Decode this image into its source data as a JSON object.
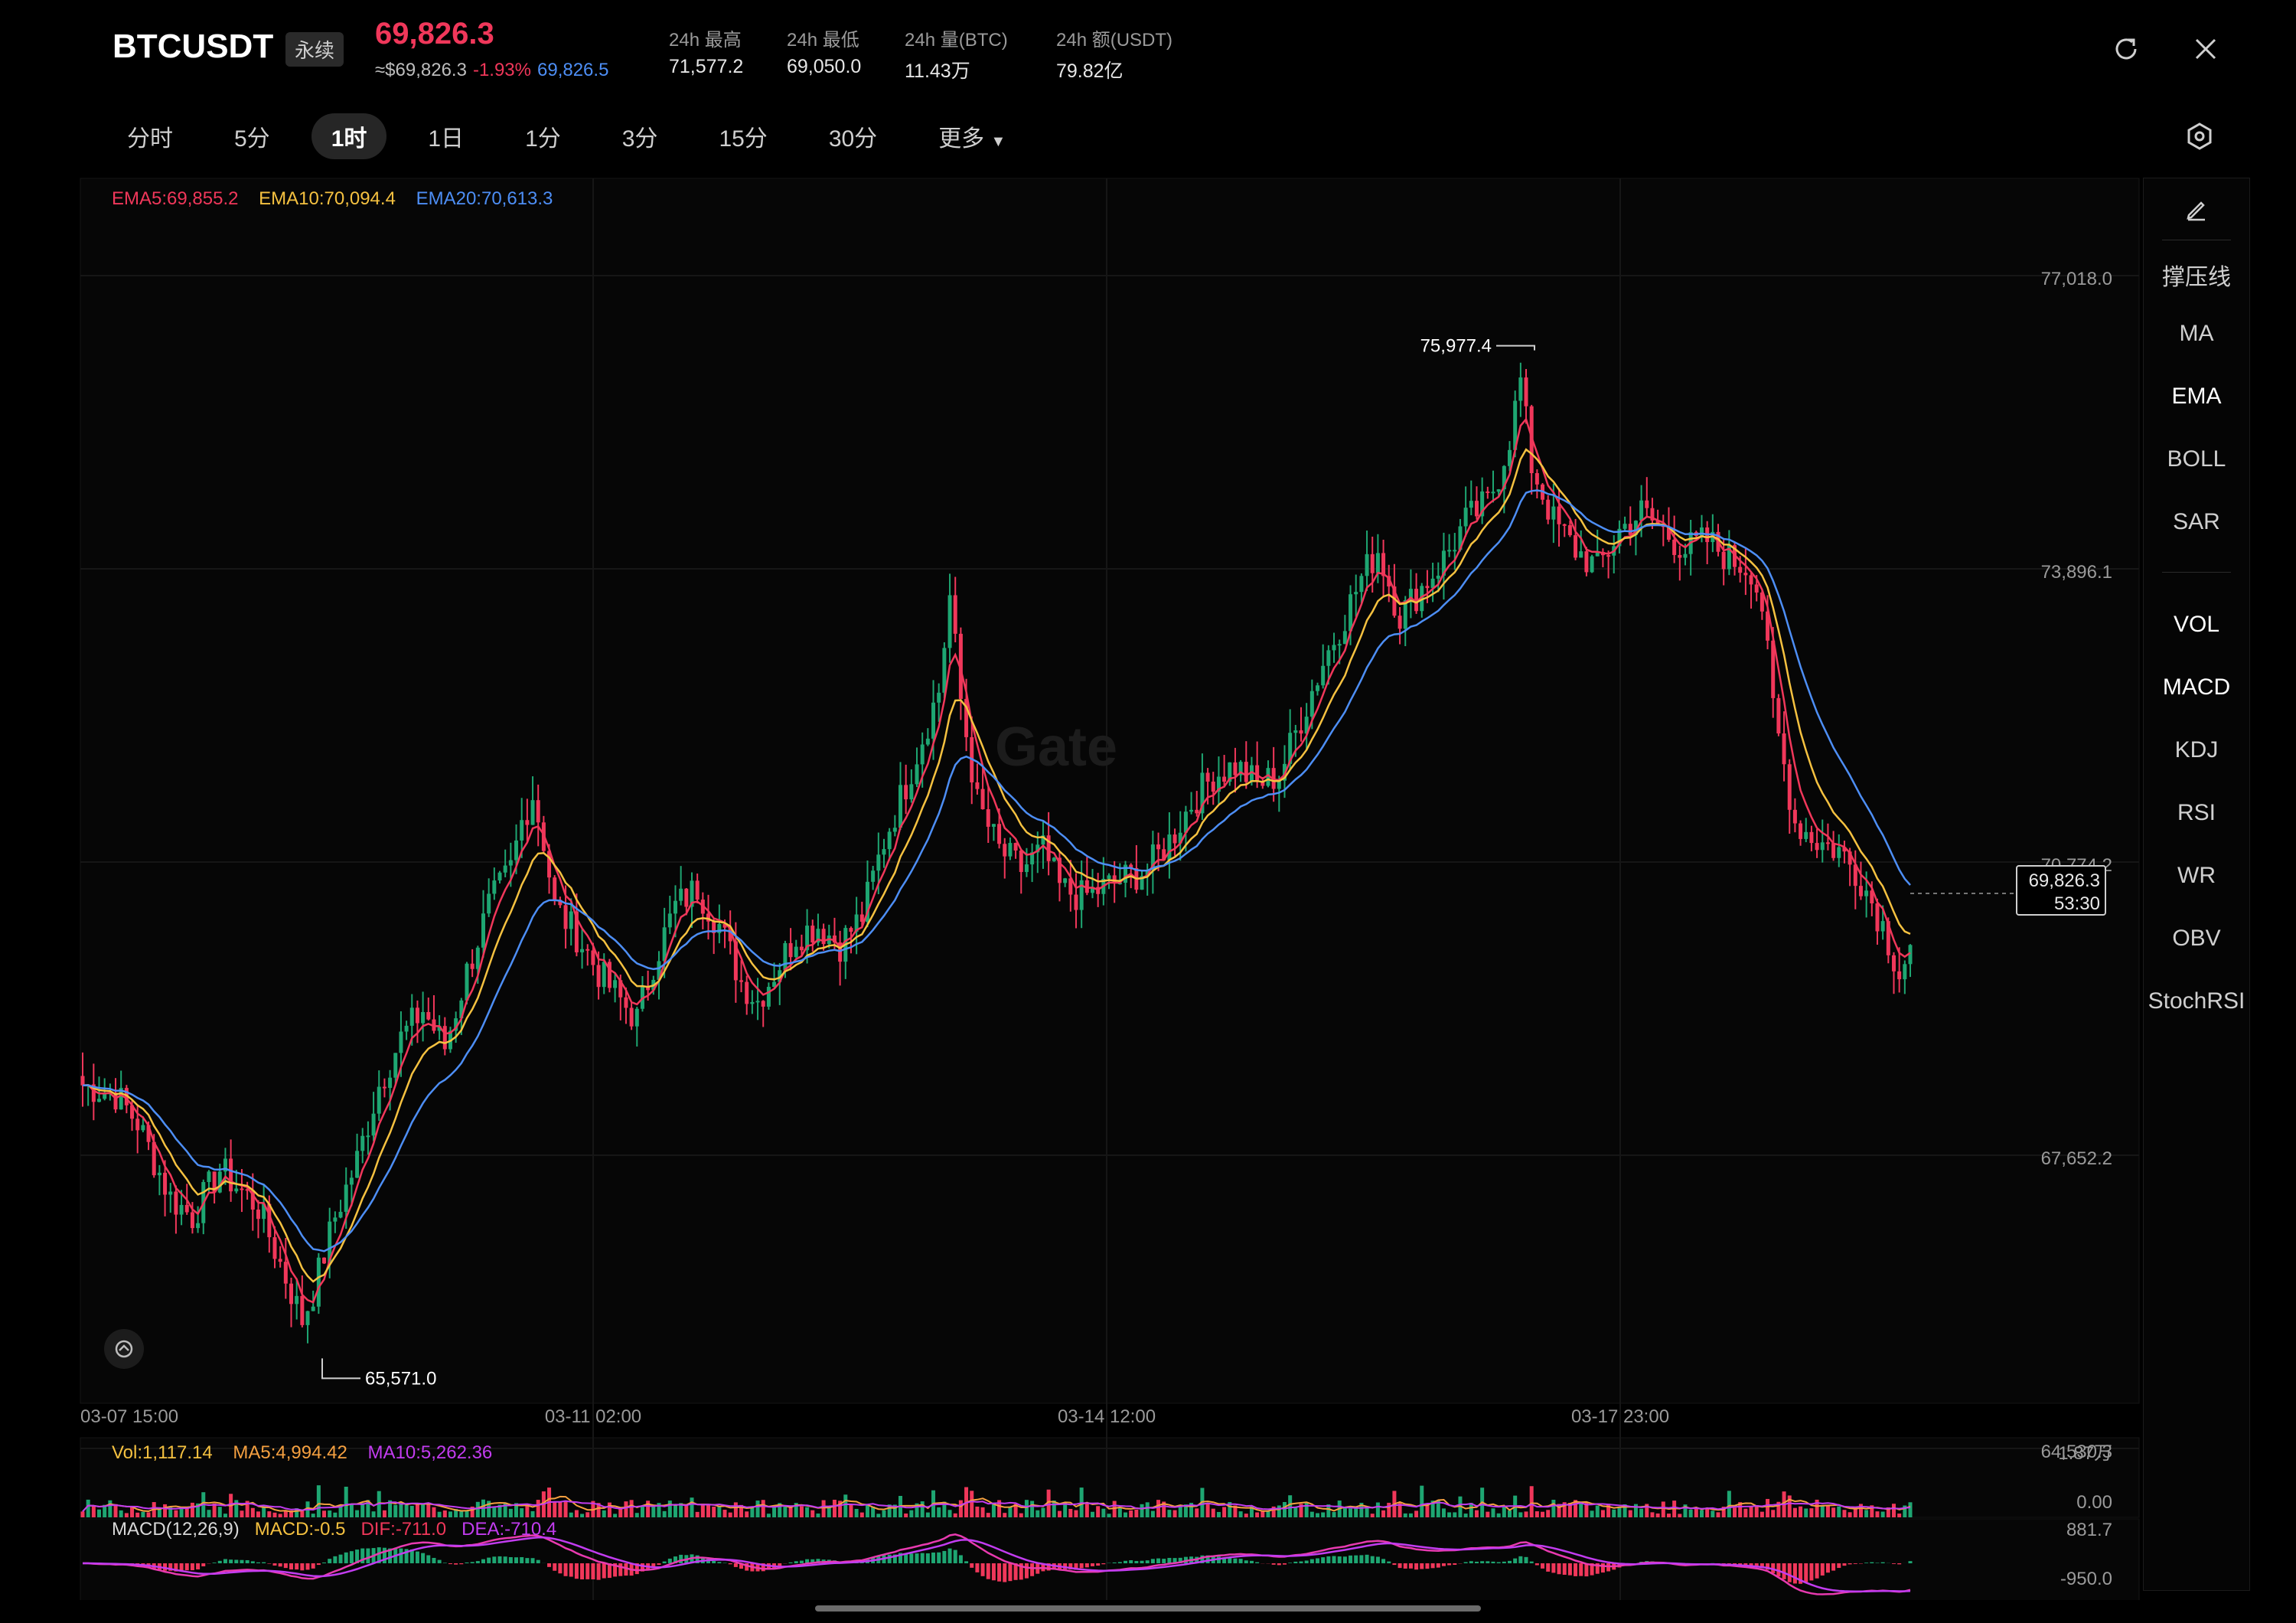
{
  "header": {
    "symbol": "BTCUSDT",
    "badge": "永续",
    "last_price": "69,826.3",
    "usd_price": "≈$69,826.3",
    "change_pct": "-1.93%",
    "mark_price": "69,826.5",
    "stats": [
      {
        "label": "24h  最高",
        "value": "71,577.2"
      },
      {
        "label": "24h  最低",
        "value": "69,050.0"
      },
      {
        "label": "24h  量(BTC)",
        "value": "11.43万"
      },
      {
        "label": "24h  额(USDT)",
        "value": "79.82亿"
      }
    ]
  },
  "intervals": [
    "分时",
    "5分",
    "1时",
    "1日",
    "1分",
    "3分",
    "15分",
    "30分",
    "更多"
  ],
  "active_interval": "1时",
  "indicators": {
    "overlay": [
      "撑压线",
      "MA",
      "EMA",
      "BOLL",
      "SAR"
    ],
    "sub": [
      "VOL",
      "MACD",
      "KDJ",
      "RSI",
      "WR",
      "OBV",
      "StochRSI"
    ]
  },
  "colors": {
    "up": "#1ea672",
    "down": "#f0375a",
    "ema5": "#f0375a",
    "ema10": "#f5c140",
    "ema20": "#4d8ef5",
    "ma10": "#c23cf0",
    "macd_line": "#e83ab0"
  },
  "watermark": "Gate",
  "chart_data": {
    "type": "candlestick",
    "interval": "1h",
    "ema_legend": [
      {
        "name": "EMA5",
        "value": "69,855.2"
      },
      {
        "name": "EMA10",
        "value": "70,094.4"
      },
      {
        "name": "EMA20",
        "value": "70,613.3"
      }
    ],
    "y_ticks": [
      "77,018.0",
      "73,896.1",
      "70,774.2",
      "67,652.2",
      "64,530.3"
    ],
    "ylim": [
      64530.3,
      77018.0
    ],
    "x_ticks": [
      "03-07 15:00",
      "03-11 02:00",
      "03-14 12:00",
      "03-17 23:00"
    ],
    "high_label": "75,977.4",
    "low_label": "65,571.0",
    "current_price": "69,826.3",
    "countdown": "53:30",
    "close_path": [
      [
        0,
        68400
      ],
      [
        6,
        68300
      ],
      [
        10,
        68000
      ],
      [
        16,
        67200
      ],
      [
        20,
        67000
      ],
      [
        25,
        67500
      ],
      [
        32,
        67100
      ],
      [
        36,
        66500
      ],
      [
        40,
        65900
      ],
      [
        42,
        66200
      ],
      [
        46,
        67000
      ],
      [
        50,
        67600
      ],
      [
        54,
        68400
      ],
      [
        58,
        68900
      ],
      [
        62,
        69200
      ],
      [
        66,
        68800
      ],
      [
        70,
        69600
      ],
      [
        74,
        70300
      ],
      [
        78,
        70700
      ],
      [
        80,
        71200
      ],
      [
        82,
        71500
      ],
      [
        84,
        71000
      ],
      [
        86,
        70300
      ],
      [
        90,
        70000
      ],
      [
        94,
        69600
      ],
      [
        98,
        69300
      ],
      [
        101,
        69100
      ],
      [
        104,
        69700
      ],
      [
        108,
        70300
      ],
      [
        112,
        70500
      ],
      [
        116,
        70100
      ],
      [
        120,
        69500
      ],
      [
        123,
        69300
      ],
      [
        127,
        69700
      ],
      [
        130,
        70000
      ],
      [
        134,
        70100
      ],
      [
        138,
        69900
      ],
      [
        142,
        70200
      ],
      [
        146,
        71000
      ],
      [
        150,
        71600
      ],
      [
        153,
        72100
      ],
      [
        156,
        72600
      ],
      [
        158,
        73600
      ],
      [
        160,
        72500
      ],
      [
        163,
        71400
      ],
      [
        167,
        70900
      ],
      [
        171,
        70700
      ],
      [
        175,
        70900
      ],
      [
        178,
        70500
      ],
      [
        182,
        70400
      ],
      [
        186,
        70500
      ],
      [
        190,
        70600
      ],
      [
        194,
        70700
      ],
      [
        198,
        71000
      ],
      [
        202,
        71400
      ],
      [
        206,
        71700
      ],
      [
        210,
        71800
      ],
      [
        214,
        71600
      ],
      [
        218,
        71700
      ],
      [
        222,
        72300
      ],
      [
        226,
        72900
      ],
      [
        230,
        73400
      ],
      [
        233,
        73800
      ],
      [
        236,
        74100
      ],
      [
        240,
        73400
      ],
      [
        244,
        73700
      ],
      [
        248,
        74000
      ],
      [
        252,
        74400
      ],
      [
        256,
        74600
      ],
      [
        258,
        74900
      ],
      [
        260,
        75300
      ],
      [
        262,
        75900
      ],
      [
        264,
        75000
      ],
      [
        268,
        74400
      ],
      [
        272,
        74100
      ],
      [
        276,
        73900
      ],
      [
        280,
        74300
      ],
      [
        284,
        74500
      ],
      [
        288,
        74300
      ],
      [
        292,
        74100
      ],
      [
        296,
        74200
      ],
      [
        300,
        74000
      ],
      [
        304,
        73900
      ],
      [
        306,
        73500
      ],
      [
        308,
        72400
      ],
      [
        310,
        71800
      ],
      [
        312,
        71200
      ],
      [
        316,
        71000
      ],
      [
        320,
        70900
      ],
      [
        324,
        70600
      ],
      [
        328,
        70100
      ],
      [
        331,
        69600
      ],
      [
        333,
        69826.3
      ]
    ],
    "volume": {
      "legend": [
        {
          "name": "Vol",
          "value": "1,117.14"
        },
        {
          "name": "MA5",
          "value": "4,994.42"
        },
        {
          "name": "MA10",
          "value": "5,262.36"
        }
      ],
      "y_ticks": [
        "1.87万",
        "0.00"
      ]
    },
    "macd": {
      "legend": [
        {
          "name": "MACD(12,26,9)",
          "value": ""
        },
        {
          "name": "MACD",
          "value": "-0.5"
        },
        {
          "name": "DIF",
          "value": "-711.0"
        },
        {
          "name": "DEA",
          "value": "-710.4"
        }
      ],
      "y_ticks": [
        "881.7",
        "-950.0"
      ]
    }
  }
}
